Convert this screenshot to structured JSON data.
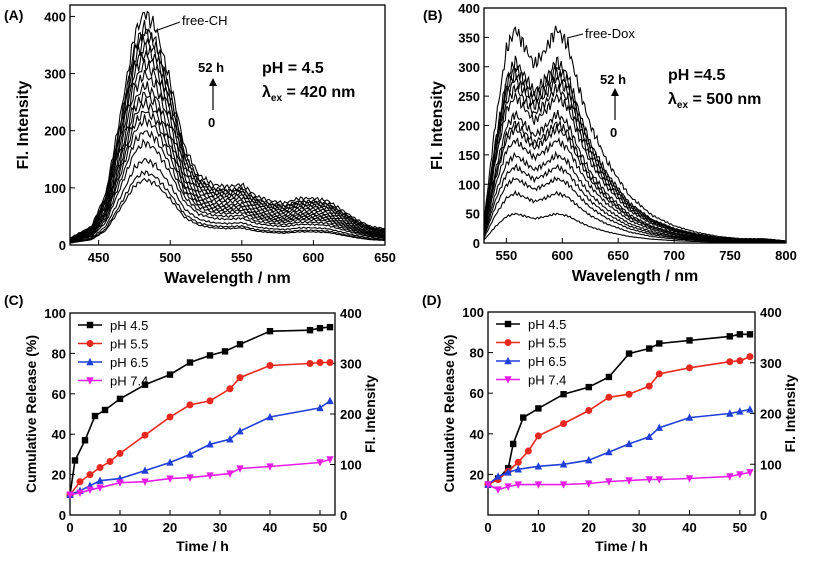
{
  "chart_data": [
    {
      "panel": "(A)",
      "type": "line",
      "xlabel": "Wavelength / nm",
      "ylabel": "Fl. Intensity",
      "xlim": [
        430,
        650
      ],
      "ylim": [
        0,
        420
      ],
      "xticks": [
        450,
        500,
        550,
        600,
        650
      ],
      "yticks": [
        0,
        100,
        200,
        300,
        400
      ],
      "annotation_peak": "free-CH",
      "annotation_time_top": "52 h",
      "annotation_time_bottom": "0",
      "condition_ph": "pH = 4.5",
      "condition_lambda_symbol": "λ",
      "condition_lambda_sub": "ex",
      "condition_lambda_value": " = 420 nm",
      "curve_shape": {
        "x": [
          430,
          445,
          455,
          465,
          475,
          482,
          490,
          500,
          510,
          520,
          530,
          540,
          550,
          560,
          570,
          580,
          590,
          600,
          610,
          620,
          630,
          640,
          650
        ],
        "y": [
          0.03,
          0.08,
          0.22,
          0.55,
          0.9,
          1.0,
          0.93,
          0.7,
          0.42,
          0.3,
          0.26,
          0.25,
          0.26,
          0.21,
          0.19,
          0.18,
          0.2,
          0.2,
          0.19,
          0.15,
          0.11,
          0.08,
          0.07
        ]
      },
      "curve_peaks": [
        115,
        128,
        150,
        180,
        200,
        220,
        235,
        250,
        265,
        280,
        300,
        318,
        335,
        348,
        360,
        375,
        382,
        408
      ]
    },
    {
      "panel": "(B)",
      "type": "line",
      "xlabel": "Wavelength / nm",
      "ylabel": "Fl. Intensity",
      "xlim": [
        530,
        800
      ],
      "ylim": [
        0,
        400
      ],
      "xticks": [
        550,
        600,
        650,
        700,
        750,
        800
      ],
      "yticks": [
        0,
        50,
        100,
        150,
        200,
        250,
        300,
        350,
        400
      ],
      "annotation_peak": "free-Dox",
      "annotation_time_top": "52 h",
      "annotation_time_bottom": "0",
      "condition_ph": "pH =4.5",
      "condition_lambda_symbol": "λ",
      "condition_lambda_sub": "ex",
      "condition_lambda_value": " = 500 nm",
      "curve_shape": {
        "x": [
          530,
          540,
          550,
          558,
          565,
          575,
          585,
          595,
          605,
          615,
          625,
          640,
          660,
          680,
          700,
          720,
          740,
          760,
          780,
          800
        ],
        "y": [
          0.1,
          0.55,
          0.9,
          1.0,
          0.93,
          0.83,
          0.9,
          1.0,
          0.92,
          0.72,
          0.55,
          0.38,
          0.22,
          0.13,
          0.08,
          0.05,
          0.03,
          0.02,
          0.02,
          0.01
        ]
      },
      "curve_peaks": [
        50,
        85,
        110,
        130,
        150,
        175,
        195,
        205,
        220,
        250,
        265,
        280,
        290,
        300,
        310,
        365
      ]
    },
    {
      "panel": "(C)",
      "type": "line",
      "xlabel": "Time / h",
      "ylabel": "Cumulative Release (%)",
      "ylabel_right": "Fl. Intensity",
      "xlim": [
        0,
        53
      ],
      "ylim": [
        0,
        100
      ],
      "ylim_right": [
        0,
        400
      ],
      "xticks": [
        0,
        10,
        20,
        30,
        40,
        50
      ],
      "yticks": [
        0,
        20,
        40,
        60,
        80,
        100
      ],
      "yticks_right": [
        0,
        100,
        200,
        300,
        400
      ],
      "series": [
        {
          "name": "pH 4.5",
          "color": "#000000",
          "marker": "square",
          "x": [
            0,
            1,
            3,
            5,
            7,
            10,
            15,
            20,
            24,
            28,
            31,
            34,
            40,
            48,
            50,
            52
          ],
          "y": [
            10,
            27,
            37,
            49,
            52,
            57.5,
            64.5,
            69.5,
            75.5,
            79,
            81,
            84.5,
            91,
            91.5,
            92.5,
            93
          ]
        },
        {
          "name": "pH 5.5",
          "color": "#e8281e",
          "marker": "circle",
          "x": [
            0,
            2,
            4,
            6,
            8,
            10,
            15,
            20,
            24,
            28,
            32,
            34,
            40,
            48,
            50,
            52
          ],
          "y": [
            10,
            16.5,
            20,
            23.5,
            26.5,
            30.5,
            39.5,
            48.5,
            54.5,
            56.5,
            62.5,
            68,
            74,
            75,
            75.5,
            75.5
          ]
        },
        {
          "name": "pH 6.5",
          "color": "#1f3fd8",
          "marker": "triangle",
          "x": [
            0,
            2,
            4,
            6,
            10,
            15,
            20,
            24,
            28,
            32,
            34,
            40,
            50,
            52
          ],
          "y": [
            10,
            12,
            14.5,
            17,
            18,
            22,
            26,
            30,
            35,
            37.5,
            41.5,
            48.5,
            53,
            56.5
          ]
        },
        {
          "name": "pH 7.4",
          "color": "#e81ee8",
          "marker": "tri-down",
          "x": [
            0,
            2,
            4,
            6,
            10,
            15,
            20,
            24,
            28,
            32,
            34,
            40,
            50,
            52
          ],
          "y": [
            10,
            11,
            12.5,
            13.5,
            16,
            16.5,
            18,
            18.5,
            19.5,
            20.5,
            23,
            24,
            26,
            27.5
          ]
        }
      ]
    },
    {
      "panel": "(D)",
      "type": "line",
      "xlabel": "Time / h",
      "ylabel": "Cumulative Release (%)",
      "ylabel_right": "Fl. Intensity",
      "xlim": [
        0,
        53
      ],
      "ylim": [
        0,
        100
      ],
      "ylim_right": [
        0,
        400
      ],
      "xticks": [
        0,
        10,
        20,
        30,
        40,
        50
      ],
      "yticks": [
        20,
        40,
        60,
        80,
        100
      ],
      "yticks_right": [
        0,
        100,
        200,
        300,
        400
      ],
      "series": [
        {
          "name": "pH 4.5",
          "color": "#000000",
          "marker": "square",
          "x": [
            0,
            2,
            4,
            5,
            7,
            10,
            15,
            20,
            24,
            28,
            32,
            34,
            40,
            48,
            50,
            52
          ],
          "y": [
            15,
            18,
            23,
            35,
            48,
            52.5,
            59.5,
            63,
            68,
            79.5,
            82,
            84.5,
            86,
            88,
            89,
            89
          ]
        },
        {
          "name": "pH 5.5",
          "color": "#e8281e",
          "marker": "circle",
          "x": [
            0,
            2,
            4,
            6,
            8,
            10,
            15,
            20,
            24,
            28,
            32,
            34,
            40,
            48,
            50,
            52
          ],
          "y": [
            15,
            17.5,
            21.5,
            26,
            31.5,
            39,
            45,
            51.5,
            58,
            59.5,
            63.5,
            69.5,
            72.5,
            75.5,
            76,
            78
          ]
        },
        {
          "name": "pH 6.5",
          "color": "#1f3fd8",
          "marker": "triangle",
          "x": [
            0,
            2,
            4,
            6,
            10,
            15,
            20,
            24,
            28,
            32,
            34,
            40,
            48,
            50,
            52
          ],
          "y": [
            15,
            19,
            21,
            22.5,
            24,
            25,
            27,
            31,
            35,
            38.5,
            43,
            48,
            50,
            51,
            52
          ]
        },
        {
          "name": "pH 7.4",
          "color": "#e81ee8",
          "marker": "tri-down",
          "x": [
            0,
            2,
            4,
            6,
            10,
            15,
            20,
            24,
            28,
            32,
            34,
            40,
            48,
            50,
            52
          ],
          "y": [
            15,
            12.5,
            14,
            15,
            15,
            15,
            15.5,
            16.5,
            17,
            17.5,
            17.5,
            18,
            19,
            20,
            21
          ]
        }
      ]
    }
  ]
}
